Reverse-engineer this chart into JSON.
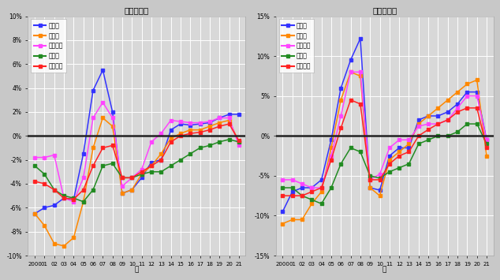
{
  "years": [
    2000,
    2001,
    2002,
    2003,
    2004,
    2005,
    2006,
    2007,
    2008,
    2009,
    2010,
    2011,
    2012,
    2013,
    2014,
    2015,
    2016,
    2017,
    2018,
    2019,
    2020,
    2021
  ],
  "residential": {
    "tokyo": [
      -6.5,
      -6.0,
      -5.8,
      -5.2,
      -5.3,
      -1.5,
      3.8,
      5.5,
      2.0,
      -4.8,
      -4.5,
      -3.5,
      -2.2,
      -2.0,
      0.5,
      1.0,
      0.9,
      1.0,
      1.1,
      1.5,
      1.8,
      1.8
    ],
    "osaka": [
      -6.5,
      -7.5,
      -9.0,
      -9.2,
      -8.5,
      -5.5,
      -1.0,
      1.5,
      0.8,
      -4.8,
      -4.5,
      -3.2,
      -2.5,
      -1.5,
      -0.2,
      0.2,
      0.5,
      0.5,
      0.8,
      1.1,
      1.3,
      -0.5
    ],
    "nagoya": [
      -1.8,
      -1.8,
      -1.6,
      -5.2,
      -5.5,
      -3.5,
      1.5,
      2.8,
      1.5,
      -4.2,
      -3.5,
      -2.8,
      -0.5,
      0.2,
      1.3,
      1.2,
      1.1,
      1.1,
      1.2,
      1.5,
      1.5,
      -0.8
    ],
    "local": [
      -2.5,
      -3.2,
      -4.5,
      -5.0,
      -5.2,
      -5.5,
      -4.5,
      -2.5,
      -2.3,
      -3.5,
      -3.5,
      -3.2,
      -3.0,
      -3.0,
      -2.5,
      -2.0,
      -1.5,
      -1.0,
      -0.8,
      -0.5,
      -0.3,
      -0.5
    ],
    "national": [
      -3.8,
      -4.0,
      -4.5,
      -5.2,
      -5.3,
      -4.5,
      -2.5,
      -1.0,
      -0.8,
      -3.5,
      -3.5,
      -3.0,
      -2.5,
      -2.0,
      -0.5,
      0.0,
      0.2,
      0.3,
      0.5,
      0.8,
      1.0,
      -0.4
    ]
  },
  "commercial": {
    "tokyo": [
      -9.5,
      -7.0,
      -6.5,
      -6.5,
      -5.5,
      -0.5,
      6.0,
      9.5,
      12.2,
      -6.5,
      -6.8,
      -2.5,
      -1.5,
      -1.5,
      2.0,
      2.5,
      2.5,
      3.0,
      4.0,
      5.5,
      5.5,
      -0.5
    ],
    "osaka": [
      -11.0,
      -10.5,
      -10.5,
      -8.5,
      -7.0,
      -1.5,
      4.5,
      8.0,
      7.5,
      -6.5,
      -7.5,
      -3.0,
      -2.0,
      -1.0,
      1.5,
      2.5,
      3.5,
      4.5,
      5.5,
      6.5,
      7.0,
      -2.5
    ],
    "nagoya": [
      -5.5,
      -5.5,
      -6.0,
      -6.5,
      -6.5,
      -2.5,
      2.5,
      8.0,
      8.0,
      -5.5,
      -4.8,
      -1.5,
      -0.5,
      -0.5,
      1.2,
      1.5,
      1.5,
      2.0,
      3.5,
      5.0,
      5.0,
      -0.5
    ],
    "local": [
      -6.5,
      -6.5,
      -7.5,
      -8.0,
      -8.5,
      -6.5,
      -3.5,
      -1.5,
      -2.0,
      -5.0,
      -5.3,
      -4.5,
      -4.0,
      -3.5,
      -1.0,
      -0.5,
      0.0,
      0.0,
      0.5,
      1.5,
      1.5,
      -1.0
    ],
    "national": [
      -7.5,
      -7.5,
      -7.5,
      -7.0,
      -6.5,
      -3.0,
      1.0,
      4.5,
      4.0,
      -5.5,
      -5.5,
      -3.5,
      -2.5,
      -2.0,
      0.0,
      0.8,
      1.5,
      2.0,
      3.0,
      3.5,
      3.5,
      -1.5
    ]
  },
  "colors": {
    "tokyo": "#3333FF",
    "osaka": "#FF8800",
    "nagoya": "#FF44FF",
    "local": "#228B22",
    "national": "#FF2222"
  },
  "legend_labels": {
    "tokyo": "東京圈",
    "osaka": "大阪圈",
    "nagoya": "名古屋圈",
    "local": "地方圈",
    "national": "全国平均"
  },
  "title_left": "（住宅地）",
  "title_right": "（商業地）",
  "ylim_left": [
    -10,
    10
  ],
  "ylim_right": [
    -15,
    15
  ],
  "yticks_left": [
    -10,
    -8,
    -6,
    -4,
    -2,
    0,
    2,
    4,
    6,
    8,
    10
  ],
  "yticks_right": [
    -15,
    -10,
    -5,
    0,
    5,
    10,
    15
  ],
  "fig_bg": "#c8c8c8",
  "plot_bg": "#d8d8d8"
}
